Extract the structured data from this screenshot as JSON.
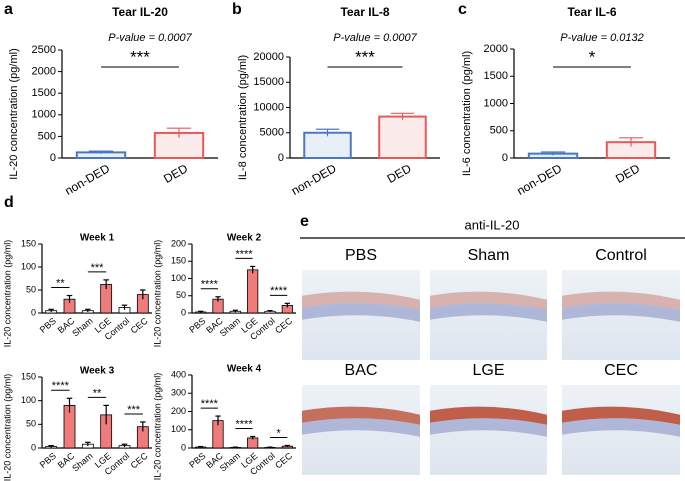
{
  "panel_labels": [
    "a",
    "b",
    "c",
    "d",
    "e"
  ],
  "chart_data": [
    {
      "type": "bar",
      "title": "Tear IL-20",
      "ylabel": "IL-20 concentration (pg/ml)",
      "categories": [
        "non-DED",
        "DED"
      ],
      "values": [
        130,
        580
      ],
      "errors": [
        30,
        110
      ],
      "colors": [
        "#4a78c0",
        "#e8585a"
      ],
      "bar_style": "outline",
      "ylim": [
        0,
        2500
      ],
      "yticks": [
        0,
        500,
        1000,
        1500,
        2000,
        2500
      ],
      "annotations": [
        "P-value = 0.0007"
      ],
      "comparisons": [
        {
          "between": [
            "non-DED",
            "DED"
          ],
          "label": "***"
        }
      ]
    },
    {
      "type": "bar",
      "title": "Tear IL-8",
      "ylabel": "IL-8 concentration (pg/ml)",
      "categories": [
        "non-DED",
        "DED"
      ],
      "values": [
        5000,
        8200
      ],
      "errors": [
        700,
        650
      ],
      "colors": [
        "#4a78c0",
        "#e8585a"
      ],
      "bar_style": "outline",
      "ylim": [
        0,
        20000
      ],
      "yticks": [
        0,
        5000,
        10000,
        15000,
        20000
      ],
      "annotations": [
        "P-value = 0.0007"
      ],
      "comparisons": [
        {
          "between": [
            "non-DED",
            "DED"
          ],
          "label": "***"
        }
      ]
    },
    {
      "type": "bar",
      "title": "Tear IL-6",
      "ylabel": "IL-6 concentration (pg/ml)",
      "categories": [
        "non-DED",
        "DED"
      ],
      "values": [
        80,
        290
      ],
      "errors": [
        30,
        80
      ],
      "colors": [
        "#4a78c0",
        "#e8585a"
      ],
      "bar_style": "outline",
      "ylim": [
        0,
        2000
      ],
      "yticks": [
        0,
        500,
        1000,
        1500,
        2000
      ],
      "annotations": [
        "P-value = 0.0132"
      ],
      "comparisons": [
        {
          "between": [
            "non-DED",
            "DED"
          ],
          "label": "*"
        }
      ]
    },
    {
      "type": "bar",
      "title": "Week 1",
      "ylabel": "IL-20 concentration (pg/ml)",
      "categories": [
        "PBS",
        "BAC",
        "Sham",
        "LGE",
        "Control",
        "CEC"
      ],
      "values": [
        5,
        30,
        5,
        62,
        12,
        40
      ],
      "errors": [
        3,
        8,
        3,
        10,
        5,
        10
      ],
      "colors": [
        "#ffffff",
        "#ef7b7b",
        "#ffffff",
        "#ef7b7b",
        "#ffffff",
        "#ef7b7b"
      ],
      "bar_style": "filled",
      "ylim": [
        0,
        150
      ],
      "yticks": [
        0,
        50,
        100,
        150
      ],
      "comparisons": [
        {
          "between": [
            "PBS",
            "BAC"
          ],
          "label": "**"
        },
        {
          "between": [
            "Sham",
            "LGE"
          ],
          "label": "***"
        }
      ]
    },
    {
      "type": "bar",
      "title": "Week 2",
      "ylabel": "IL-20 concentration (pg/ml)",
      "categories": [
        "PBS",
        "BAC",
        "Sham",
        "LGE",
        "Control",
        "CEC"
      ],
      "values": [
        3,
        40,
        5,
        125,
        5,
        22
      ],
      "errors": [
        2,
        7,
        3,
        10,
        2,
        6
      ],
      "colors": [
        "#ffffff",
        "#ef7b7b",
        "#ffffff",
        "#ef7b7b",
        "#ffffff",
        "#ef7b7b"
      ],
      "bar_style": "filled",
      "ylim": [
        0,
        200
      ],
      "yticks": [
        0,
        50,
        100,
        150,
        200
      ],
      "comparisons": [
        {
          "between": [
            "PBS",
            "BAC"
          ],
          "label": "****"
        },
        {
          "between": [
            "Sham",
            "LGE"
          ],
          "label": "****"
        },
        {
          "between": [
            "Control",
            "CEC"
          ],
          "label": "****"
        }
      ]
    },
    {
      "type": "bar",
      "title": "Week 3",
      "ylabel": "IL-20 concentration (pg/ml)",
      "categories": [
        "PBS",
        "BAC",
        "Sham",
        "LGE",
        "Control",
        "CEC"
      ],
      "values": [
        3,
        90,
        8,
        70,
        5,
        45
      ],
      "errors": [
        2,
        15,
        4,
        20,
        3,
        10
      ],
      "colors": [
        "#ffffff",
        "#ef7b7b",
        "#ffffff",
        "#ef7b7b",
        "#ffffff",
        "#ef7b7b"
      ],
      "bar_style": "filled",
      "ylim": [
        0,
        150
      ],
      "yticks": [
        0,
        50,
        100,
        150
      ],
      "comparisons": [
        {
          "between": [
            "PBS",
            "BAC"
          ],
          "label": "****"
        },
        {
          "between": [
            "Sham",
            "LGE"
          ],
          "label": "**"
        },
        {
          "between": [
            "Control",
            "CEC"
          ],
          "label": "***"
        }
      ]
    },
    {
      "type": "bar",
      "title": "Week 4",
      "ylabel": "IL-20 concentration (pg/ml)",
      "categories": [
        "PBS",
        "BAC",
        "Sham",
        "LGE",
        "Control",
        "CEC"
      ],
      "values": [
        5,
        150,
        3,
        55,
        3,
        10
      ],
      "errors": [
        3,
        25,
        2,
        8,
        2,
        4
      ],
      "colors": [
        "#ffffff",
        "#ef7b7b",
        "#ffffff",
        "#ef7b7b",
        "#ffffff",
        "#ef7b7b"
      ],
      "bar_style": "filled",
      "ylim": [
        0,
        400
      ],
      "yticks": [
        0,
        100,
        200,
        300,
        400
      ],
      "comparisons": [
        {
          "between": [
            "PBS",
            "BAC"
          ],
          "label": "****"
        },
        {
          "between": [
            "Sham",
            "LGE"
          ],
          "label": "****"
        },
        {
          "between": [
            "Control",
            "CEC"
          ],
          "label": "*"
        }
      ]
    }
  ],
  "histology": {
    "title": "anti-IL-20",
    "labels": [
      "PBS",
      "Sham",
      "Control",
      "BAC",
      "LGE",
      "CEC"
    ]
  }
}
